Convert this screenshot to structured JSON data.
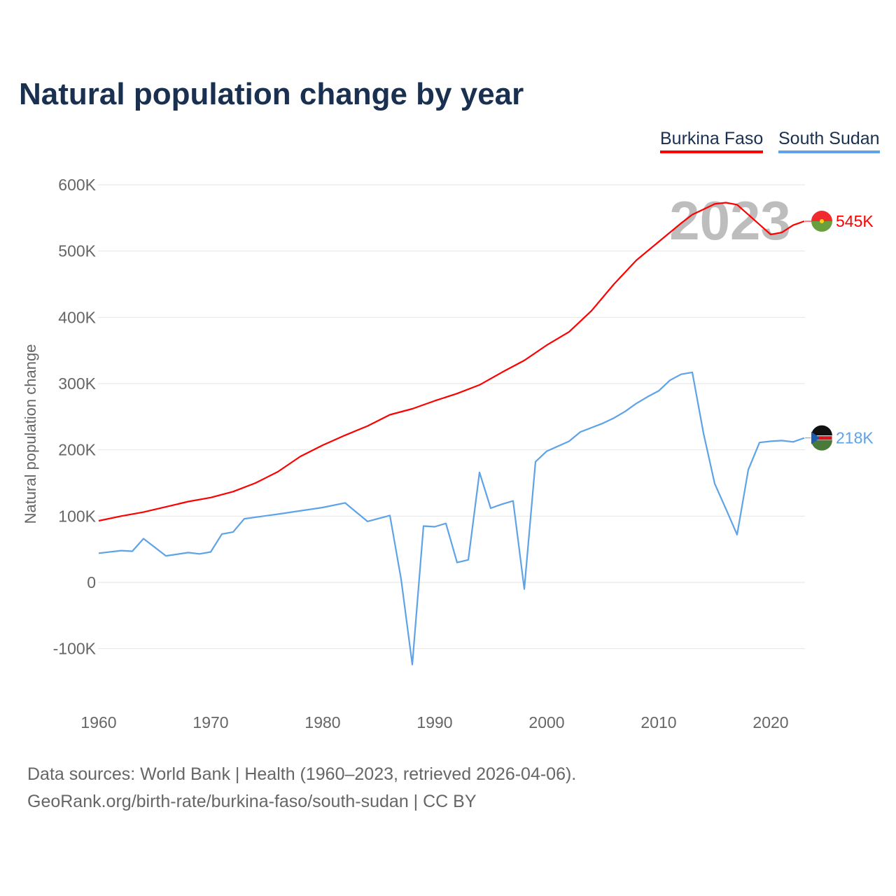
{
  "title": "Natural population change by year",
  "legend": [
    {
      "name": "Burkina Faso",
      "color": "#ff0000"
    },
    {
      "name": "South Sudan",
      "color": "#5ea3e8"
    }
  ],
  "source_lines": [
    "Data sources: World Bank | Health (1960–2023, retrieved 2026-04-06).",
    "GeoRank.org/birth-rate/burkina-faso/south-sudan | CC BY"
  ],
  "chart_data": {
    "type": "line",
    "title": "Natural population change by year",
    "xlabel": "",
    "ylabel": "Natural population change",
    "xlim": [
      1960,
      2023
    ],
    "ylim": [
      -150000,
      620000
    ],
    "x_ticks": [
      1960,
      1970,
      1980,
      1990,
      2000,
      2010,
      2020
    ],
    "y_ticks": [
      -100000,
      0,
      100000,
      200000,
      300000,
      400000,
      500000,
      600000
    ],
    "y_tick_labels": [
      "-100K",
      "0",
      "100K",
      "200K",
      "300K",
      "400K",
      "500K",
      "600K"
    ],
    "grid": true,
    "legend_position": "top-right",
    "year_watermark": "2023",
    "series": [
      {
        "name": "Burkina Faso",
        "color": "#ff0000",
        "end_label": "545K",
        "x": [
          1960,
          1962,
          1964,
          1966,
          1968,
          1970,
          1972,
          1974,
          1976,
          1978,
          1980,
          1982,
          1984,
          1986,
          1988,
          1990,
          1992,
          1994,
          1996,
          1998,
          2000,
          2002,
          2004,
          2006,
          2008,
          2010,
          2012,
          2013,
          2014,
          2015,
          2016,
          2017,
          2018,
          2019,
          2020,
          2021,
          2022,
          2023
        ],
        "values": [
          93000,
          100000,
          106000,
          114000,
          122000,
          128000,
          137000,
          150000,
          167000,
          190000,
          207000,
          222000,
          236000,
          253000,
          262000,
          274000,
          285000,
          298000,
          317000,
          335000,
          358000,
          378000,
          410000,
          450000,
          486000,
          514000,
          542000,
          555000,
          563000,
          571000,
          573000,
          570000,
          555000,
          540000,
          525000,
          528000,
          539000,
          545000
        ]
      },
      {
        "name": "South Sudan",
        "color": "#5ea3e8",
        "end_label": "218K",
        "x": [
          1960,
          1962,
          1963,
          1964,
          1966,
          1968,
          1969,
          1970,
          1971,
          1972,
          1973,
          1976,
          1980,
          1982,
          1984,
          1986,
          1987,
          1988,
          1989,
          1990,
          1991,
          1992,
          1993,
          1994,
          1995,
          1996,
          1997,
          1998,
          1999,
          2000,
          2002,
          2003,
          2005,
          2006,
          2007,
          2008,
          2009,
          2010,
          2011,
          2012,
          2013,
          2014,
          2015,
          2016,
          2017,
          2018,
          2019,
          2020,
          2021,
          2022,
          2023
        ],
        "values": [
          44000,
          48000,
          47000,
          66000,
          40000,
          45000,
          43000,
          46000,
          73000,
          76000,
          96000,
          103000,
          113000,
          120000,
          92000,
          101000,
          5000,
          -124000,
          85000,
          84000,
          89000,
          30000,
          34000,
          166000,
          112000,
          118000,
          123000,
          -10000,
          182000,
          198000,
          213000,
          227000,
          240000,
          248000,
          258000,
          270000,
          280000,
          289000,
          305000,
          314000,
          317000,
          225000,
          149000,
          111000,
          72000,
          170000,
          211000,
          213000,
          214000,
          212000,
          218000
        ]
      }
    ]
  }
}
